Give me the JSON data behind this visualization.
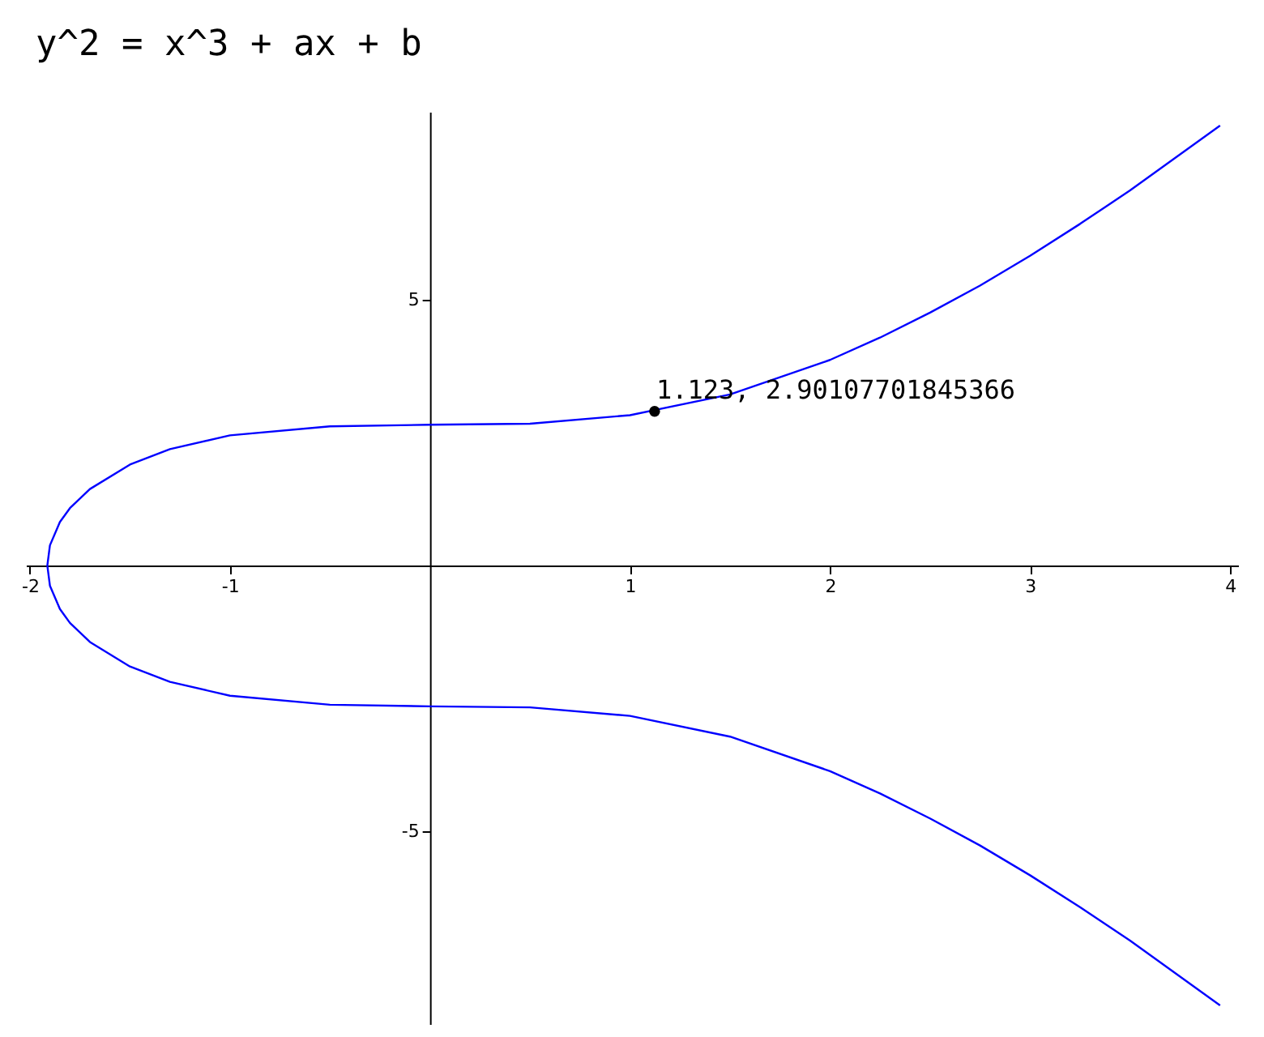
{
  "chart_data": {
    "type": "line",
    "title": "y^2 = x^3 + ax + b",
    "xlim": [
      -2.02,
      4.04
    ],
    "ylim": [
      -8.63,
      8.54
    ],
    "xticks": [
      -2,
      -1,
      1,
      2,
      3,
      4
    ],
    "yticks": [
      5,
      -5
    ],
    "grid": false,
    "series": [
      {
        "color": "#0000ff",
        "x": [
          3.95,
          3.5,
          3.25,
          3.0,
          2.75,
          2.5,
          2.25,
          2.0,
          1.5,
          1.0,
          0.5,
          0,
          -0.5,
          -1.0,
          -1.3,
          -1.5,
          -1.7,
          -1.8,
          -1.85,
          -1.9,
          -1.913,
          -1.9,
          -1.85,
          -1.8,
          -1.7,
          -1.5,
          -1.3,
          -1.0,
          -0.5,
          0,
          0.5,
          1.0,
          1.5,
          2.0,
          2.25,
          2.5,
          2.75,
          3.0,
          3.25,
          3.5,
          3.95
        ],
        "values": [
          8.28,
          7.06,
          6.43,
          5.83,
          5.27,
          4.76,
          4.29,
          3.87,
          3.22,
          2.83,
          2.67,
          2.65,
          2.62,
          2.45,
          2.19,
          1.9,
          1.44,
          1.08,
          0.82,
          0.38,
          0,
          -0.38,
          -0.82,
          -1.08,
          -1.44,
          -1.9,
          -2.19,
          -2.45,
          -2.62,
          -2.65,
          -2.67,
          -2.83,
          -3.22,
          -3.87,
          -4.29,
          -4.76,
          -5.27,
          -5.83,
          -6.43,
          -7.06,
          -8.28
        ]
      },
      {
        "type": "scatter",
        "color": "#000000",
        "marker": "circle",
        "x": [
          1.123
        ],
        "values": [
          2.90107701845366
        ]
      }
    ],
    "annotations": [
      {
        "text": "1.123, 2.90107701845366",
        "x": 1.123,
        "y": 2.90107701845366
      }
    ]
  }
}
